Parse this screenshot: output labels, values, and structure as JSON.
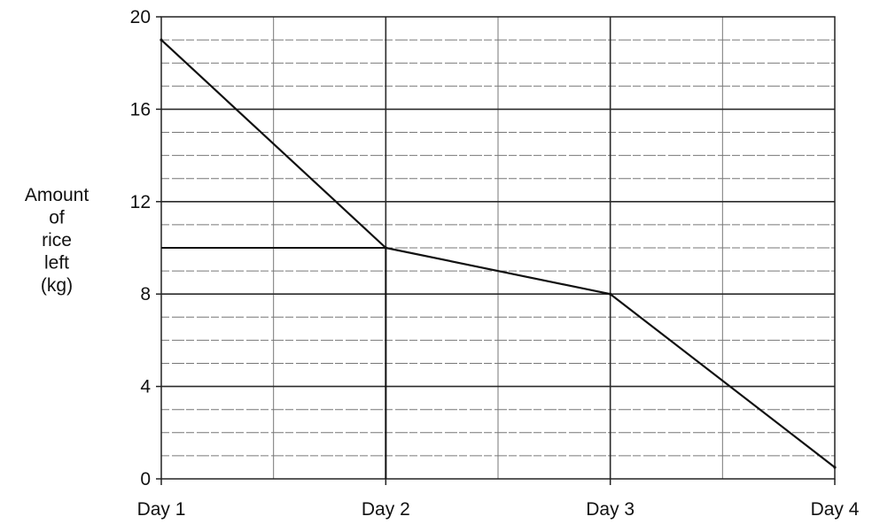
{
  "chart_data": {
    "type": "line",
    "title": "",
    "xlabel": "",
    "ylabel_lines": [
      "Amount",
      "of",
      "rice",
      "left",
      "(kg)"
    ],
    "categories": [
      "Day 1",
      "Day 2",
      "Day 3",
      "Day 4"
    ],
    "y_ticks": [
      "0",
      "4",
      "8",
      "12",
      "16",
      "20"
    ],
    "ylim": [
      0,
      20
    ],
    "grid": true,
    "series": [
      {
        "x": [
          0,
          1,
          2,
          3
        ],
        "values": [
          19,
          10,
          8,
          0.5
        ]
      }
    ],
    "guide_lines": [
      {
        "from": [
          0,
          10
        ],
        "to": [
          1,
          10
        ]
      },
      {
        "from": [
          1,
          10
        ],
        "to": [
          1,
          0
        ]
      }
    ],
    "colors": {
      "line": "#111111",
      "grid_major": "#2a2a2a",
      "grid_minor": "#777777",
      "frame": "#222222"
    }
  }
}
